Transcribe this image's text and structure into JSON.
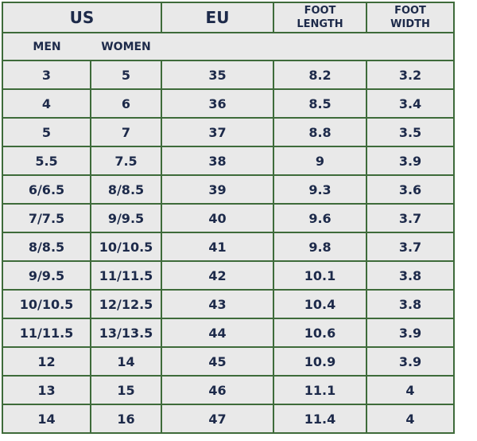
{
  "header": {
    "us": "US",
    "eu": "EU",
    "foot_length": "FOOT LENGTH",
    "foot_width": "FOOT WIDTH",
    "men": "MEN",
    "women": "WOMEN"
  },
  "table": {
    "rows": [
      [
        "3",
        "5",
        "35",
        "8.2",
        "3.2"
      ],
      [
        "4",
        "6",
        "36",
        "8.5",
        "3.4"
      ],
      [
        "5",
        "7",
        "37",
        "8.8",
        "3.5"
      ],
      [
        "5.5",
        "7.5",
        "38",
        "9",
        "3.9"
      ],
      [
        "6/6.5",
        "8/8.5",
        "39",
        "9.3",
        "3.6"
      ],
      [
        "7/7.5",
        "9/9.5",
        "40",
        "9.6",
        "3.7"
      ],
      [
        "8/8.5",
        "10/10.5",
        "41",
        "9.8",
        "3.7"
      ],
      [
        "9/9.5",
        "11/11.5",
        "42",
        "10.1",
        "3.8"
      ],
      [
        "10/10.5",
        "12/12.5",
        "43",
        "10.4",
        "3.8"
      ],
      [
        "11/11.5",
        "13/13.5",
        "44",
        "10.6",
        "3.9"
      ],
      [
        "12",
        "14",
        "45",
        "10.9",
        "3.9"
      ],
      [
        "13",
        "15",
        "46",
        "11.1",
        "4"
      ],
      [
        "14",
        "16",
        "47",
        "11.4",
        "4"
      ]
    ]
  }
}
